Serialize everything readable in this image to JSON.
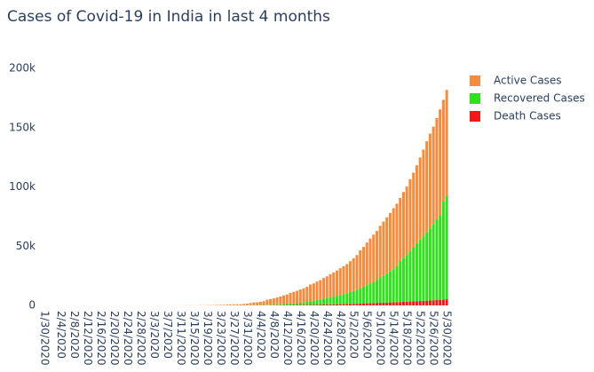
{
  "chart_data": {
    "type": "bar",
    "stacked": true,
    "title": "Cases of Covid-19 in India in last 4 months",
    "categories": [
      "1/30/2020",
      null,
      null,
      null,
      null,
      "2/4/2020",
      null,
      null,
      null,
      "2/8/2020",
      null,
      null,
      null,
      "2/12/2020",
      null,
      null,
      null,
      "2/16/2020",
      null,
      null,
      null,
      "2/20/2020",
      null,
      null,
      null,
      "2/24/2020",
      null,
      null,
      null,
      "2/28/2020",
      null,
      null,
      null,
      "3/3/2020",
      null,
      null,
      null,
      "3/7/2020",
      null,
      null,
      null,
      "3/11/2020",
      null,
      null,
      null,
      "3/15/2020",
      null,
      null,
      null,
      "3/19/2020",
      null,
      null,
      null,
      "3/23/2020",
      null,
      null,
      null,
      "3/27/2020",
      null,
      null,
      null,
      "3/31/2020",
      null,
      null,
      null,
      "4/4/2020",
      null,
      null,
      null,
      "4/8/2020",
      null,
      null,
      null,
      "4/12/2020",
      null,
      null,
      null,
      "4/16/2020",
      null,
      null,
      null,
      "4/20/2020",
      null,
      null,
      null,
      "4/24/2020",
      null,
      null,
      null,
      "4/28/2020",
      null,
      null,
      null,
      "5/2/2020",
      null,
      null,
      null,
      "5/6/2020",
      null,
      null,
      null,
      "5/10/2020",
      null,
      null,
      null,
      "5/14/2020",
      null,
      null,
      null,
      "5/18/2020",
      null,
      null,
      null,
      "5/22/2020",
      null,
      null,
      null,
      "5/26/2020",
      null,
      null,
      null,
      "5/30/2020"
    ],
    "series": [
      {
        "name": "Active Cases",
        "color": "#f58b3c",
        "values": [
          1,
          1,
          1,
          2,
          3,
          3,
          3,
          3,
          3,
          3,
          3,
          3,
          3,
          3,
          3,
          0,
          0,
          0,
          0,
          0,
          0,
          0,
          0,
          0,
          0,
          0,
          0,
          0,
          0,
          0,
          0,
          0,
          2,
          3,
          25,
          27,
          28,
          31,
          36,
          40,
          53,
          58,
          68,
          70,
          90,
          98,
          103,
          125,
          138,
          175,
          219,
          301,
          364,
          449,
          485,
          602,
          645,
          792,
          878,
          901,
          1117,
          1238,
          1792,
          2280,
          2303,
          2767,
          3204,
          4267,
          4730,
          5232,
          5879,
          6578,
          7189,
          7794,
          8914,
          9735,
          10485,
          11214,
          11825,
          12738,
          14202,
          14674,
          15460,
          16319,
          17344,
          18252,
          19519,
          20486,
          21375,
          22569,
          23546,
          24641,
          26027,
          27557,
          29339,
          32024,
          33565,
          35871,
          37686,
          39823,
          41406,
          43980,
          45925,
          47457,
          49104,
          51469,
          52773,
          53553,
          55878,
          57939,
          60864,
          63294,
          66089,
          69244,
          73170,
          76820,
          80072,
          82172,
          85803,
          89569,
          85884,
          89658
        ]
      },
      {
        "name": "Recovered Cases",
        "color": "#2ee21a",
        "values": [
          0,
          0,
          0,
          0,
          0,
          0,
          0,
          0,
          0,
          0,
          0,
          0,
          0,
          0,
          0,
          3,
          3,
          3,
          3,
          3,
          3,
          3,
          3,
          3,
          3,
          3,
          3,
          3,
          3,
          3,
          3,
          3,
          3,
          3,
          3,
          3,
          3,
          3,
          3,
          3,
          3,
          4,
          4,
          10,
          10,
          13,
          14,
          14,
          15,
          15,
          20,
          23,
          23,
          40,
          40,
          43,
          66,
          75,
          85,
          96,
          102,
          124,
          148,
          191,
          192,
          229,
          285,
          375,
          421,
          506,
          620,
          774,
          969,
          1080,
          1181,
          1359,
          1432,
          1768,
          2041,
          2463,
          2854,
          3273,
          3975,
          4370,
          5012,
          5498,
          5939,
          6523,
          7137,
          7747,
          8437,
          9068,
          10007,
          10819,
          11775,
          12847,
          14142,
          15331,
          16776,
          17887,
          19301,
          20969,
          22549,
          24420,
          26400,
          27969,
          30258,
          34224,
          36795,
          39233,
          42309,
          45300,
          48553,
          51824,
          54385,
          57692,
          60706,
          64277,
          67749,
          71106,
          82627,
          86984
        ]
      },
      {
        "name": "Death Cases",
        "color": "#f21818",
        "values": [
          0,
          0,
          0,
          0,
          0,
          0,
          0,
          0,
          0,
          0,
          0,
          0,
          0,
          0,
          0,
          0,
          0,
          0,
          0,
          0,
          0,
          0,
          0,
          0,
          0,
          0,
          0,
          0,
          0,
          0,
          0,
          0,
          0,
          0,
          0,
          0,
          0,
          0,
          0,
          0,
          0,
          0,
          1,
          2,
          2,
          2,
          2,
          3,
          3,
          4,
          5,
          6,
          9,
          10,
          11,
          12,
          16,
          20,
          24,
          27,
          32,
          35,
          58,
          72,
          72,
          86,
          99,
          136,
          160,
          178,
          226,
          246,
          288,
          331,
          358,
          393,
          405,
          448,
          486,
          521,
          559,
          592,
          645,
          681,
          721,
          780,
          825,
          881,
          939,
          1008,
          1079,
          1154,
          1223,
          1323,
          1391,
          1566,
          1693,
          1785,
          1889,
          1985,
          2101,
          2212,
          2294,
          2415,
          2551,
          2649,
          2753,
          2871,
          3025,
          3156,
          3302,
          3434,
          3584,
          3726,
          3868,
          4024,
          4172,
          4344,
          4534,
          4711,
          4980,
          5185
        ]
      }
    ],
    "ylim": [
      0,
      200000
    ],
    "yticks": [
      0,
      {
        "value": 50000,
        "label": "50k"
      },
      {
        "value": 100000,
        "label": "100k"
      },
      {
        "value": 150000,
        "label": "150k"
      },
      {
        "value": 200000,
        "label": "200k"
      }
    ],
    "legend": "right"
  }
}
